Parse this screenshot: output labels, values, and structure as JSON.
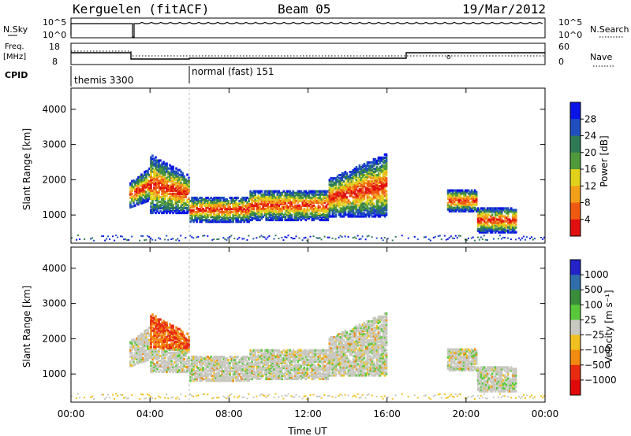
{
  "header": {
    "radar": "Kerguelen (fitACF)",
    "beam": "Beam 05",
    "date": "19/Mar/2012"
  },
  "status_panels": {
    "nsky_label": "N.Sky",
    "nsky_ticks": [
      "10^5",
      "10^0"
    ],
    "nsearch_label": "N.Search",
    "nsearch_ticks": [
      "10^5",
      "10^0"
    ],
    "freq_label_1": "Freq.",
    "freq_label_2": "[MHz]",
    "freq_ticks": [
      "18",
      "8"
    ],
    "nave_label": "Nave",
    "nave_ticks": [
      "60",
      "0"
    ],
    "cpid_label": "CPID",
    "cpid_programs": [
      {
        "name": "themis 3300",
        "start_hour": 0
      },
      {
        "name": "normal (fast) 151",
        "start_hour": 6
      }
    ]
  },
  "chart_data": [
    {
      "type": "heatmap",
      "name": "power-panel",
      "xlabel": "",
      "ylabel": "Slant Range [km]",
      "x_range_hours": [
        0,
        24
      ],
      "ylim": [
        200,
        4600
      ],
      "y_ticks": [
        1000,
        2000,
        3000,
        4000
      ],
      "colorbar_label": "Power [dB]",
      "colorbar_ticks": [
        4,
        8,
        12,
        16,
        20,
        24,
        28
      ],
      "colorbar_colors": [
        "#0a14e6",
        "#1f4fbf",
        "#2f7a55",
        "#4f9a3a",
        "#e0d21a",
        "#f2a01a",
        "#ef5a12",
        "#e01010"
      ]
    },
    {
      "type": "heatmap",
      "name": "velocity-panel",
      "xlabel": "Time UT",
      "ylabel": "Slant Range [km]",
      "x_range_hours": [
        0,
        24
      ],
      "x_tick_labels": [
        "00:00",
        "04:00",
        "08:00",
        "12:00",
        "16:00",
        "20:00",
        "00:00"
      ],
      "ylim": [
        200,
        4600
      ],
      "y_ticks": [
        1000,
        2000,
        3000,
        4000
      ],
      "colorbar_label": "Velocity [m s⁻¹]",
      "colorbar_ticks": [
        "1000",
        "500",
        "100",
        "25",
        "−25",
        "−100",
        "−500",
        "−1000"
      ],
      "colorbar_colors": [
        "#2323c8",
        "#2f6ea8",
        "#3a8c3a",
        "#58c83a",
        "#c8c8c0",
        "#f0c020",
        "#f08a10",
        "#e82a10",
        "#e00a0a"
      ]
    }
  ]
}
